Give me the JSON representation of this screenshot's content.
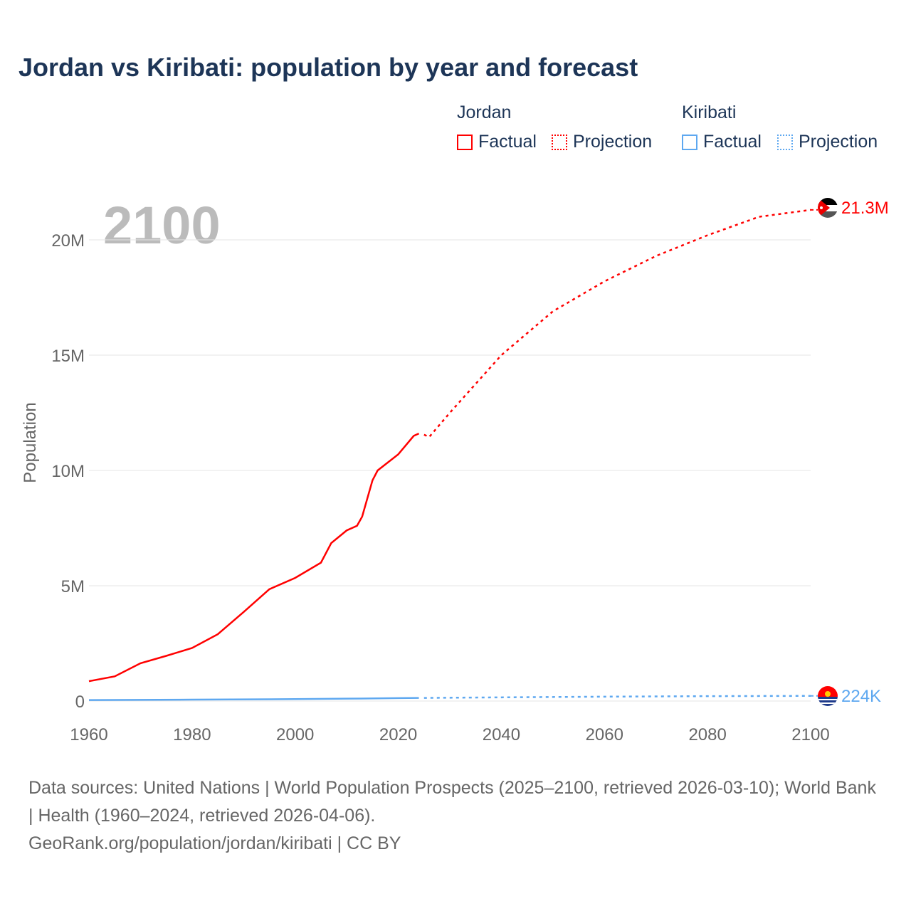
{
  "title": "Jordan vs Kiribati: population by year and forecast",
  "legend": {
    "jordan": "Jordan",
    "kiribati": "Kiribati",
    "factual": "Factual",
    "projection": "Projection"
  },
  "year_label": "2100",
  "footer": {
    "sources": "Data sources: United Nations | World Population Prospects (2025–2100, retrieved 2026-03-10); World Bank | Health (1960–2024, retrieved 2026-04-06).",
    "credit": "GeoRank.org/population/jordan/kiribati | CC BY"
  },
  "chart_data": {
    "type": "line",
    "title": "Jordan vs Kiribati: population by year and forecast",
    "xlabel": "",
    "ylabel": "Population",
    "xlim": [
      1960,
      2100
    ],
    "ylim": [
      0,
      21300000
    ],
    "xticks": [
      1960,
      1980,
      2000,
      2020,
      2040,
      2060,
      2080,
      2100
    ],
    "xtick_labels": [
      "1960",
      "1980",
      "2000",
      "2020",
      "2040",
      "2060",
      "2080",
      "2100"
    ],
    "yticks": [
      0,
      5000000,
      10000000,
      15000000,
      20000000
    ],
    "ytick_labels": [
      "0",
      "5M",
      "10M",
      "15M",
      "20M"
    ],
    "grid": true,
    "series": [
      {
        "name": "Jordan",
        "color": "#ff0000",
        "end_label": "21.3M",
        "factual": {
          "x": [
            1960,
            1965,
            1970,
            1975,
            1980,
            1985,
            1990,
            1995,
            2000,
            2005,
            2007,
            2010,
            2012,
            2013,
            2015,
            2016,
            2020,
            2023,
            2024
          ],
          "y": [
            860000,
            1070000,
            1640000,
            1960000,
            2300000,
            2900000,
            3860000,
            4850000,
            5340000,
            6000000,
            6850000,
            7400000,
            7600000,
            8000000,
            9570000,
            10000000,
            10700000,
            11500000,
            11600000
          ]
        },
        "projection": {
          "x": [
            2025,
            2026,
            2030,
            2040,
            2050,
            2060,
            2070,
            2080,
            2090,
            2100
          ],
          "y": [
            11550000,
            11450000,
            12500000,
            15000000,
            16900000,
            18200000,
            19300000,
            20200000,
            21000000,
            21300000
          ]
        }
      },
      {
        "name": "Kiribati",
        "color": "#5ea8f0",
        "end_label": "224K",
        "factual": {
          "x": [
            1960,
            1980,
            2000,
            2010,
            2020,
            2024
          ],
          "y": [
            41000,
            60000,
            84000,
            103000,
            126000,
            134000
          ]
        },
        "projection": {
          "x": [
            2025,
            2040,
            2060,
            2080,
            2100
          ],
          "y": [
            136000,
            160000,
            190000,
            212000,
            224000
          ]
        }
      }
    ]
  }
}
